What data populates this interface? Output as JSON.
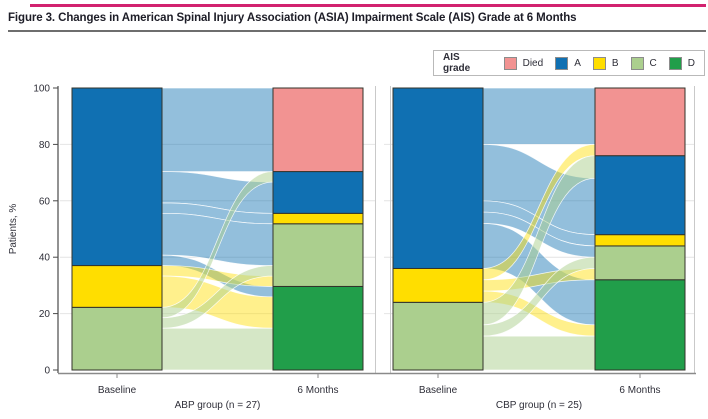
{
  "figure": {
    "title": "Figure 3. Changes in American Spinal Injury Association (ASIA) Impairment Scale (AIS) Grade at 6 Months"
  },
  "legend": {
    "label": "AIS grade",
    "items": [
      {
        "label": "Died",
        "color": "#F29392"
      },
      {
        "label": "A",
        "color": "#1070B2"
      },
      {
        "label": "B",
        "color": "#FFDE00"
      },
      {
        "label": "C",
        "color": "#ABCF8E"
      },
      {
        "label": "D",
        "color": "#219E4A"
      }
    ]
  },
  "chart_data": {
    "type": "alluvial",
    "title": "Changes in ASIA Impairment Scale (AIS) Grade at 6 Months",
    "ylabel": "Patients, %",
    "y_ticks": [
      0,
      20,
      40,
      60,
      80,
      100
    ],
    "ylim": [
      0,
      100
    ],
    "grid": "horizontal",
    "category_colors": {
      "Died": "#F29392",
      "A": "#1070B2",
      "B": "#FFDE00",
      "C": "#ABCF8E",
      "D": "#219E4A"
    },
    "baseline_stack_bottom_to_top": [
      "C",
      "B",
      "A"
    ],
    "six_months_stack_bottom_to_top": [
      "D",
      "C",
      "B",
      "A",
      "Died"
    ],
    "panels": [
      {
        "group_label": "ABP group (n = 27)",
        "n": 27,
        "x_tick_labels": [
          "Baseline",
          "6 Months"
        ],
        "baseline_counts": {
          "A": 17,
          "B": 4,
          "C": 6
        },
        "baseline_percents": {
          "A": 63.0,
          "B": 14.8,
          "C": 22.2
        },
        "six_months_counts": {
          "Died": 8,
          "A": 4,
          "B": 1,
          "C": 6,
          "D": 8
        },
        "six_months_percents": {
          "Died": 29.6,
          "A": 14.8,
          "B": 3.7,
          "C": 22.2,
          "D": 29.6
        },
        "flows": [
          {
            "from": "A",
            "to": "Died",
            "n": 8,
            "in_rank": 0
          },
          {
            "from": "A",
            "to": "A",
            "n": 3,
            "in_rank": 0
          },
          {
            "from": "A",
            "to": "B",
            "n": 1,
            "in_rank": 0
          },
          {
            "from": "A",
            "to": "C",
            "n": 4,
            "in_rank": 2
          },
          {
            "from": "A",
            "to": "D",
            "n": 1,
            "in_rank": 2
          },
          {
            "from": "B",
            "to": "C",
            "n": 1,
            "in_rank": 0
          },
          {
            "from": "B",
            "to": "D",
            "n": 3,
            "in_rank": 1
          },
          {
            "from": "C",
            "to": "A",
            "n": 1,
            "in_rank": 1
          },
          {
            "from": "C",
            "to": "C",
            "n": 1,
            "in_rank": 1
          },
          {
            "from": "C",
            "to": "D",
            "n": 4,
            "in_rank": 0
          }
        ]
      },
      {
        "group_label": "CBP group (n = 25)",
        "n": 25,
        "x_tick_labels": [
          "Baseline",
          "6 Months"
        ],
        "baseline_counts": {
          "A": 16,
          "B": 3,
          "C": 6
        },
        "baseline_percents": {
          "A": 64.0,
          "B": 12.0,
          "C": 24.0
        },
        "six_months_counts": {
          "Died": 6,
          "A": 7,
          "B": 1,
          "C": 3,
          "D": 8
        },
        "six_months_percents": {
          "Died": 24.0,
          "A": 28.0,
          "B": 4.0,
          "C": 12.0,
          "D": 32.0
        },
        "flows": [
          {
            "from": "A",
            "to": "Died",
            "n": 5,
            "in_rank": 1
          },
          {
            "from": "A",
            "to": "A",
            "n": 5,
            "in_rank": 0
          },
          {
            "from": "A",
            "to": "B",
            "n": 1,
            "in_rank": 0
          },
          {
            "from": "A",
            "to": "C",
            "n": 1,
            "in_rank": 2
          },
          {
            "from": "A",
            "to": "D",
            "n": 4,
            "in_rank": 2
          },
          {
            "from": "B",
            "to": "Died",
            "n": 1,
            "in_rank": 0
          },
          {
            "from": "B",
            "to": "C",
            "n": 1,
            "in_rank": 0
          },
          {
            "from": "B",
            "to": "D",
            "n": 1,
            "in_rank": 1
          },
          {
            "from": "C",
            "to": "A",
            "n": 2,
            "in_rank": 1
          },
          {
            "from": "C",
            "to": "C",
            "n": 1,
            "in_rank": 1
          },
          {
            "from": "C",
            "to": "D",
            "n": 3,
            "in_rank": 0
          }
        ]
      }
    ]
  }
}
